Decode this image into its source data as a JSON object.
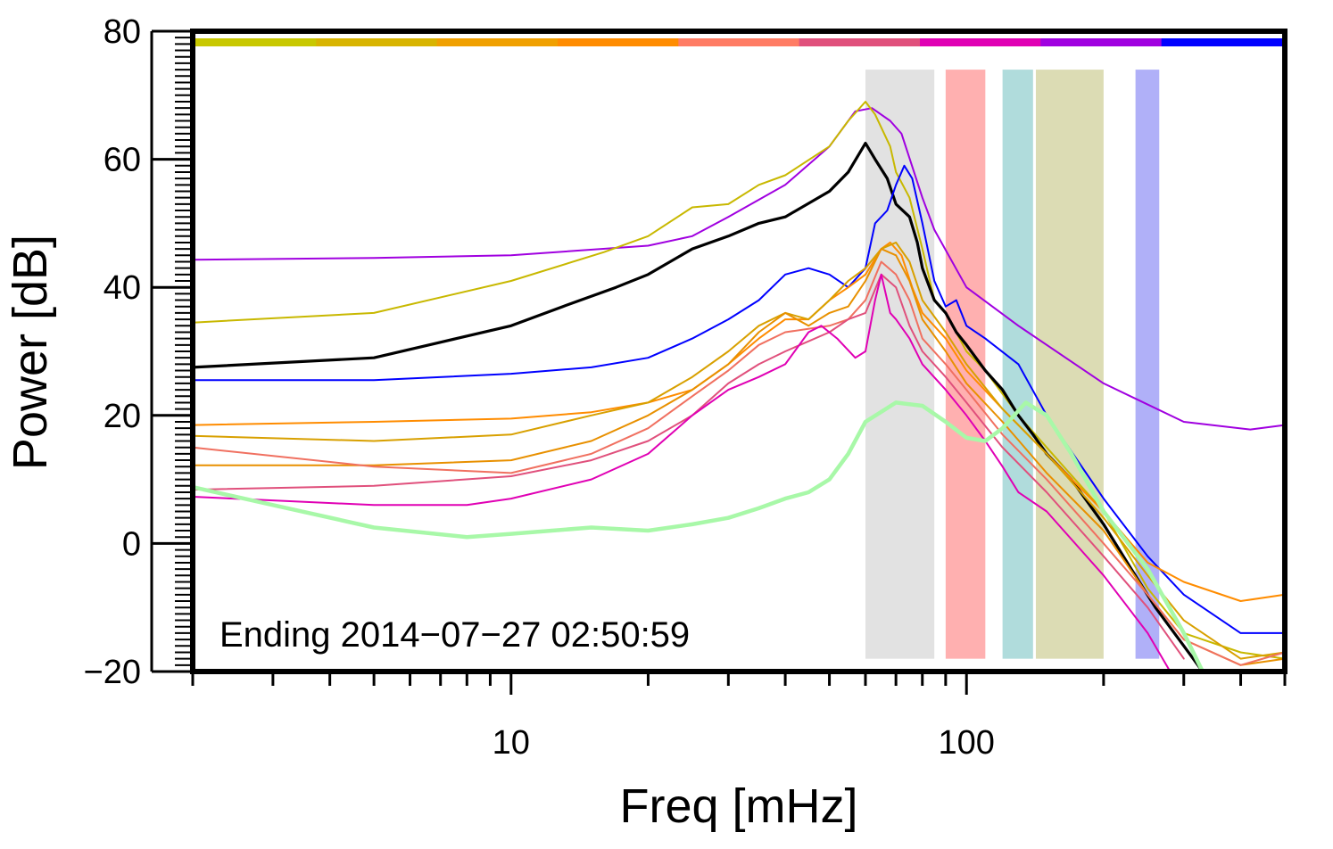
{
  "chart_data": {
    "type": "line",
    "title": "",
    "xlabel": "Freq [mHz]",
    "ylabel": "Power [dB]",
    "xscale": "log",
    "xlim": [
      2,
      500
    ],
    "ylim": [
      -20,
      80
    ],
    "x_tick_labels": [
      {
        "value": 10,
        "label": "10"
      },
      {
        "value": 100,
        "label": "100"
      }
    ],
    "y_tick_labels": [
      {
        "value": 80,
        "label": "80"
      },
      {
        "value": 60,
        "label": "60"
      },
      {
        "value": 40,
        "label": "40"
      },
      {
        "value": 20,
        "label": "20"
      },
      {
        "value": 0,
        "label": "0"
      },
      {
        "value": -20,
        "label": "−20"
      }
    ],
    "annotation": "Ending 2014−07−27 02:50:59",
    "top_color_bar": [
      "#c8c800",
      "#d8b400",
      "#f0a000",
      "#ff8c00",
      "#ff7c64",
      "#e0507c",
      "#e000b4",
      "#a000e0",
      "#0000ff"
    ],
    "bands": [
      {
        "from": 60,
        "to": 85,
        "color": "#e2e2e2"
      },
      {
        "from": 90,
        "to": 110,
        "color": "#ffb0b0"
      },
      {
        "from": 120,
        "to": 140,
        "color": "#b0dcdc"
      },
      {
        "from": 142,
        "to": 200,
        "color": "#dcdcb4"
      },
      {
        "from": 235,
        "to": 265,
        "color": "#b0b0f8"
      }
    ],
    "series": [
      {
        "name": "violet",
        "color": "#a000e0",
        "width": 2,
        "points": [
          [
            2,
            44.3
          ],
          [
            5,
            44.6
          ],
          [
            10,
            45
          ],
          [
            20,
            46.5
          ],
          [
            25,
            48
          ],
          [
            30,
            51
          ],
          [
            40,
            56
          ],
          [
            50,
            62
          ],
          [
            57,
            67.5
          ],
          [
            62,
            68
          ],
          [
            68,
            66
          ],
          [
            72,
            64
          ],
          [
            80,
            54
          ],
          [
            85,
            49
          ],
          [
            100,
            40
          ],
          [
            130,
            34
          ],
          [
            200,
            25
          ],
          [
            300,
            19
          ],
          [
            420,
            17.8
          ],
          [
            500,
            18.5
          ]
        ]
      },
      {
        "name": "yellow-green",
        "color": "#c8b800",
        "width": 2,
        "points": [
          [
            2,
            34.5
          ],
          [
            5,
            36
          ],
          [
            10,
            41
          ],
          [
            16,
            45.5
          ],
          [
            20,
            48
          ],
          [
            25,
            52.5
          ],
          [
            30,
            53
          ],
          [
            35,
            56
          ],
          [
            40,
            57.5
          ],
          [
            50,
            62
          ],
          [
            55,
            66
          ],
          [
            60,
            69
          ],
          [
            63,
            67
          ],
          [
            68,
            62
          ],
          [
            70,
            58
          ],
          [
            75,
            54
          ],
          [
            80,
            46
          ],
          [
            85,
            38
          ],
          [
            90,
            36
          ],
          [
            100,
            30
          ],
          [
            110,
            27
          ],
          [
            130,
            20
          ],
          [
            150,
            15
          ],
          [
            200,
            5
          ],
          [
            250,
            -7
          ],
          [
            300,
            -14
          ],
          [
            400,
            -17
          ],
          [
            500,
            -18
          ]
        ]
      },
      {
        "name": "black",
        "color": "#000000",
        "width": 3.2,
        "points": [
          [
            2,
            27.5
          ],
          [
            5,
            29
          ],
          [
            10,
            34
          ],
          [
            13,
            37
          ],
          [
            17,
            40
          ],
          [
            20,
            42
          ],
          [
            25,
            46
          ],
          [
            30,
            48
          ],
          [
            35,
            50
          ],
          [
            40,
            51
          ],
          [
            50,
            55
          ],
          [
            55,
            58
          ],
          [
            60,
            62.5
          ],
          [
            63,
            60
          ],
          [
            67,
            57
          ],
          [
            70,
            53
          ],
          [
            75,
            51
          ],
          [
            78,
            47
          ],
          [
            80,
            43
          ],
          [
            85,
            38
          ],
          [
            90,
            36
          ],
          [
            95,
            33
          ],
          [
            100,
            31
          ],
          [
            110,
            27
          ],
          [
            120,
            24
          ],
          [
            130,
            20
          ],
          [
            140,
            17
          ],
          [
            150,
            14
          ],
          [
            170,
            10
          ],
          [
            200,
            3
          ],
          [
            230,
            -4
          ],
          [
            260,
            -10
          ],
          [
            300,
            -16
          ],
          [
            330,
            -20
          ]
        ]
      },
      {
        "name": "blue",
        "color": "#0000ff",
        "width": 2,
        "points": [
          [
            2,
            25.5
          ],
          [
            5,
            25.5
          ],
          [
            10,
            26.5
          ],
          [
            15,
            27.5
          ],
          [
            20,
            29
          ],
          [
            25,
            32
          ],
          [
            30,
            35
          ],
          [
            35,
            38
          ],
          [
            40,
            42
          ],
          [
            45,
            43
          ],
          [
            50,
            42
          ],
          [
            55,
            40
          ],
          [
            60,
            43
          ],
          [
            63,
            50
          ],
          [
            67,
            52
          ],
          [
            70,
            56
          ],
          [
            73,
            59
          ],
          [
            76,
            57
          ],
          [
            80,
            50
          ],
          [
            85,
            41
          ],
          [
            90,
            37
          ],
          [
            95,
            38
          ],
          [
            100,
            34
          ],
          [
            110,
            32
          ],
          [
            130,
            28
          ],
          [
            150,
            20
          ],
          [
            200,
            7
          ],
          [
            250,
            -2
          ],
          [
            300,
            -8
          ],
          [
            400,
            -14
          ],
          [
            500,
            -14
          ]
        ]
      },
      {
        "name": "orange",
        "color": "#ff8c00",
        "width": 2,
        "points": [
          [
            2,
            18.5
          ],
          [
            5,
            19
          ],
          [
            10,
            19.5
          ],
          [
            15,
            20.5
          ],
          [
            20,
            22
          ],
          [
            25,
            24
          ],
          [
            30,
            28
          ],
          [
            35,
            32
          ],
          [
            40,
            35
          ],
          [
            45,
            35
          ],
          [
            50,
            38
          ],
          [
            55,
            40
          ],
          [
            60,
            42
          ],
          [
            65,
            46
          ],
          [
            68,
            47
          ],
          [
            72,
            45
          ],
          [
            76,
            40
          ],
          [
            80,
            36
          ],
          [
            90,
            32
          ],
          [
            100,
            27
          ],
          [
            120,
            21
          ],
          [
            150,
            14
          ],
          [
            200,
            5
          ],
          [
            250,
            -3
          ],
          [
            300,
            -6
          ],
          [
            400,
            -9
          ],
          [
            500,
            -8
          ]
        ]
      },
      {
        "name": "gold",
        "color": "#d8a000",
        "width": 2,
        "points": [
          [
            2,
            16.8
          ],
          [
            5,
            16
          ],
          [
            10,
            17
          ],
          [
            15,
            20
          ],
          [
            20,
            22
          ],
          [
            25,
            26
          ],
          [
            30,
            30
          ],
          [
            35,
            34
          ],
          [
            40,
            36
          ],
          [
            45,
            35
          ],
          [
            50,
            38
          ],
          [
            55,
            41
          ],
          [
            60,
            43
          ],
          [
            65,
            46
          ],
          [
            70,
            47
          ],
          [
            75,
            44
          ],
          [
            80,
            38
          ],
          [
            90,
            33
          ],
          [
            100,
            28
          ],
          [
            120,
            21
          ],
          [
            150,
            14
          ],
          [
            200,
            4
          ],
          [
            250,
            -5
          ],
          [
            300,
            -12
          ],
          [
            400,
            -18
          ],
          [
            500,
            -17
          ]
        ]
      },
      {
        "name": "amber",
        "color": "#e89000",
        "width": 2,
        "points": [
          [
            2,
            12.2
          ],
          [
            5,
            12.2
          ],
          [
            10,
            13
          ],
          [
            15,
            16
          ],
          [
            20,
            20
          ],
          [
            25,
            24
          ],
          [
            30,
            28
          ],
          [
            35,
            33
          ],
          [
            40,
            36
          ],
          [
            45,
            34
          ],
          [
            50,
            36
          ],
          [
            55,
            37
          ],
          [
            60,
            41
          ],
          [
            65,
            46
          ],
          [
            70,
            45
          ],
          [
            75,
            41
          ],
          [
            80,
            35
          ],
          [
            90,
            30
          ],
          [
            100,
            25
          ],
          [
            120,
            19
          ],
          [
            150,
            11
          ],
          [
            200,
            2
          ],
          [
            250,
            -8
          ],
          [
            300,
            -15
          ],
          [
            400,
            -19
          ],
          [
            500,
            -18
          ]
        ]
      },
      {
        "name": "salmon",
        "color": "#f07060",
        "width": 2,
        "points": [
          [
            2,
            15
          ],
          [
            5,
            12
          ],
          [
            10,
            11
          ],
          [
            15,
            14
          ],
          [
            20,
            18
          ],
          [
            25,
            23
          ],
          [
            30,
            27
          ],
          [
            35,
            31
          ],
          [
            40,
            33
          ],
          [
            50,
            34
          ],
          [
            55,
            35
          ],
          [
            60,
            38
          ],
          [
            65,
            44
          ],
          [
            70,
            42
          ],
          [
            75,
            38
          ],
          [
            80,
            32
          ],
          [
            90,
            28
          ],
          [
            100,
            24
          ],
          [
            120,
            17
          ],
          [
            150,
            10
          ],
          [
            200,
            0
          ],
          [
            250,
            -8
          ],
          [
            300,
            -15
          ],
          [
            400,
            -19
          ],
          [
            500,
            -17
          ]
        ]
      },
      {
        "name": "rose",
        "color": "#e0507c",
        "width": 2,
        "points": [
          [
            2,
            8.4
          ],
          [
            5,
            9
          ],
          [
            10,
            10.5
          ],
          [
            15,
            13
          ],
          [
            20,
            16
          ],
          [
            25,
            20
          ],
          [
            30,
            25
          ],
          [
            35,
            28
          ],
          [
            40,
            30
          ],
          [
            50,
            33
          ],
          [
            55,
            35
          ],
          [
            60,
            36
          ],
          [
            65,
            42
          ],
          [
            70,
            40
          ],
          [
            75,
            34
          ],
          [
            80,
            30
          ],
          [
            90,
            26
          ],
          [
            100,
            22
          ],
          [
            120,
            15
          ],
          [
            150,
            8
          ],
          [
            200,
            -2
          ],
          [
            250,
            -10
          ],
          [
            300,
            -18
          ]
        ]
      },
      {
        "name": "magenta",
        "color": "#e000b4",
        "width": 2,
        "points": [
          [
            2,
            7.3
          ],
          [
            5,
            6
          ],
          [
            8,
            6
          ],
          [
            10,
            7
          ],
          [
            15,
            10
          ],
          [
            20,
            14
          ],
          [
            25,
            20
          ],
          [
            30,
            24
          ],
          [
            35,
            26
          ],
          [
            40,
            28
          ],
          [
            45,
            33
          ],
          [
            48,
            34
          ],
          [
            52,
            32
          ],
          [
            57,
            29
          ],
          [
            60,
            30
          ],
          [
            63,
            38
          ],
          [
            65,
            42
          ],
          [
            68,
            36
          ],
          [
            70,
            35
          ],
          [
            75,
            32
          ],
          [
            80,
            28
          ],
          [
            90,
            24
          ],
          [
            100,
            20
          ],
          [
            110,
            16
          ],
          [
            120,
            12
          ],
          [
            130,
            8
          ],
          [
            150,
            5
          ],
          [
            200,
            -5
          ],
          [
            250,
            -14
          ],
          [
            280,
            -20
          ]
        ]
      },
      {
        "name": "light-green",
        "color": "#a8f8a8",
        "width": 4.5,
        "points": [
          [
            2,
            8.8
          ],
          [
            3,
            6
          ],
          [
            5,
            2.5
          ],
          [
            8,
            1
          ],
          [
            10,
            1.5
          ],
          [
            15,
            2.5
          ],
          [
            20,
            2
          ],
          [
            25,
            3
          ],
          [
            30,
            4
          ],
          [
            35,
            5.5
          ],
          [
            40,
            7
          ],
          [
            45,
            8
          ],
          [
            50,
            10
          ],
          [
            55,
            14
          ],
          [
            60,
            19
          ],
          [
            70,
            22
          ],
          [
            80,
            21.5
          ],
          [
            90,
            19
          ],
          [
            100,
            16.5
          ],
          [
            110,
            16
          ],
          [
            120,
            18
          ],
          [
            135,
            22
          ],
          [
            150,
            20
          ],
          [
            170,
            14
          ],
          [
            200,
            5
          ],
          [
            250,
            -4
          ],
          [
            300,
            -14
          ],
          [
            330,
            -20
          ]
        ]
      }
    ]
  }
}
